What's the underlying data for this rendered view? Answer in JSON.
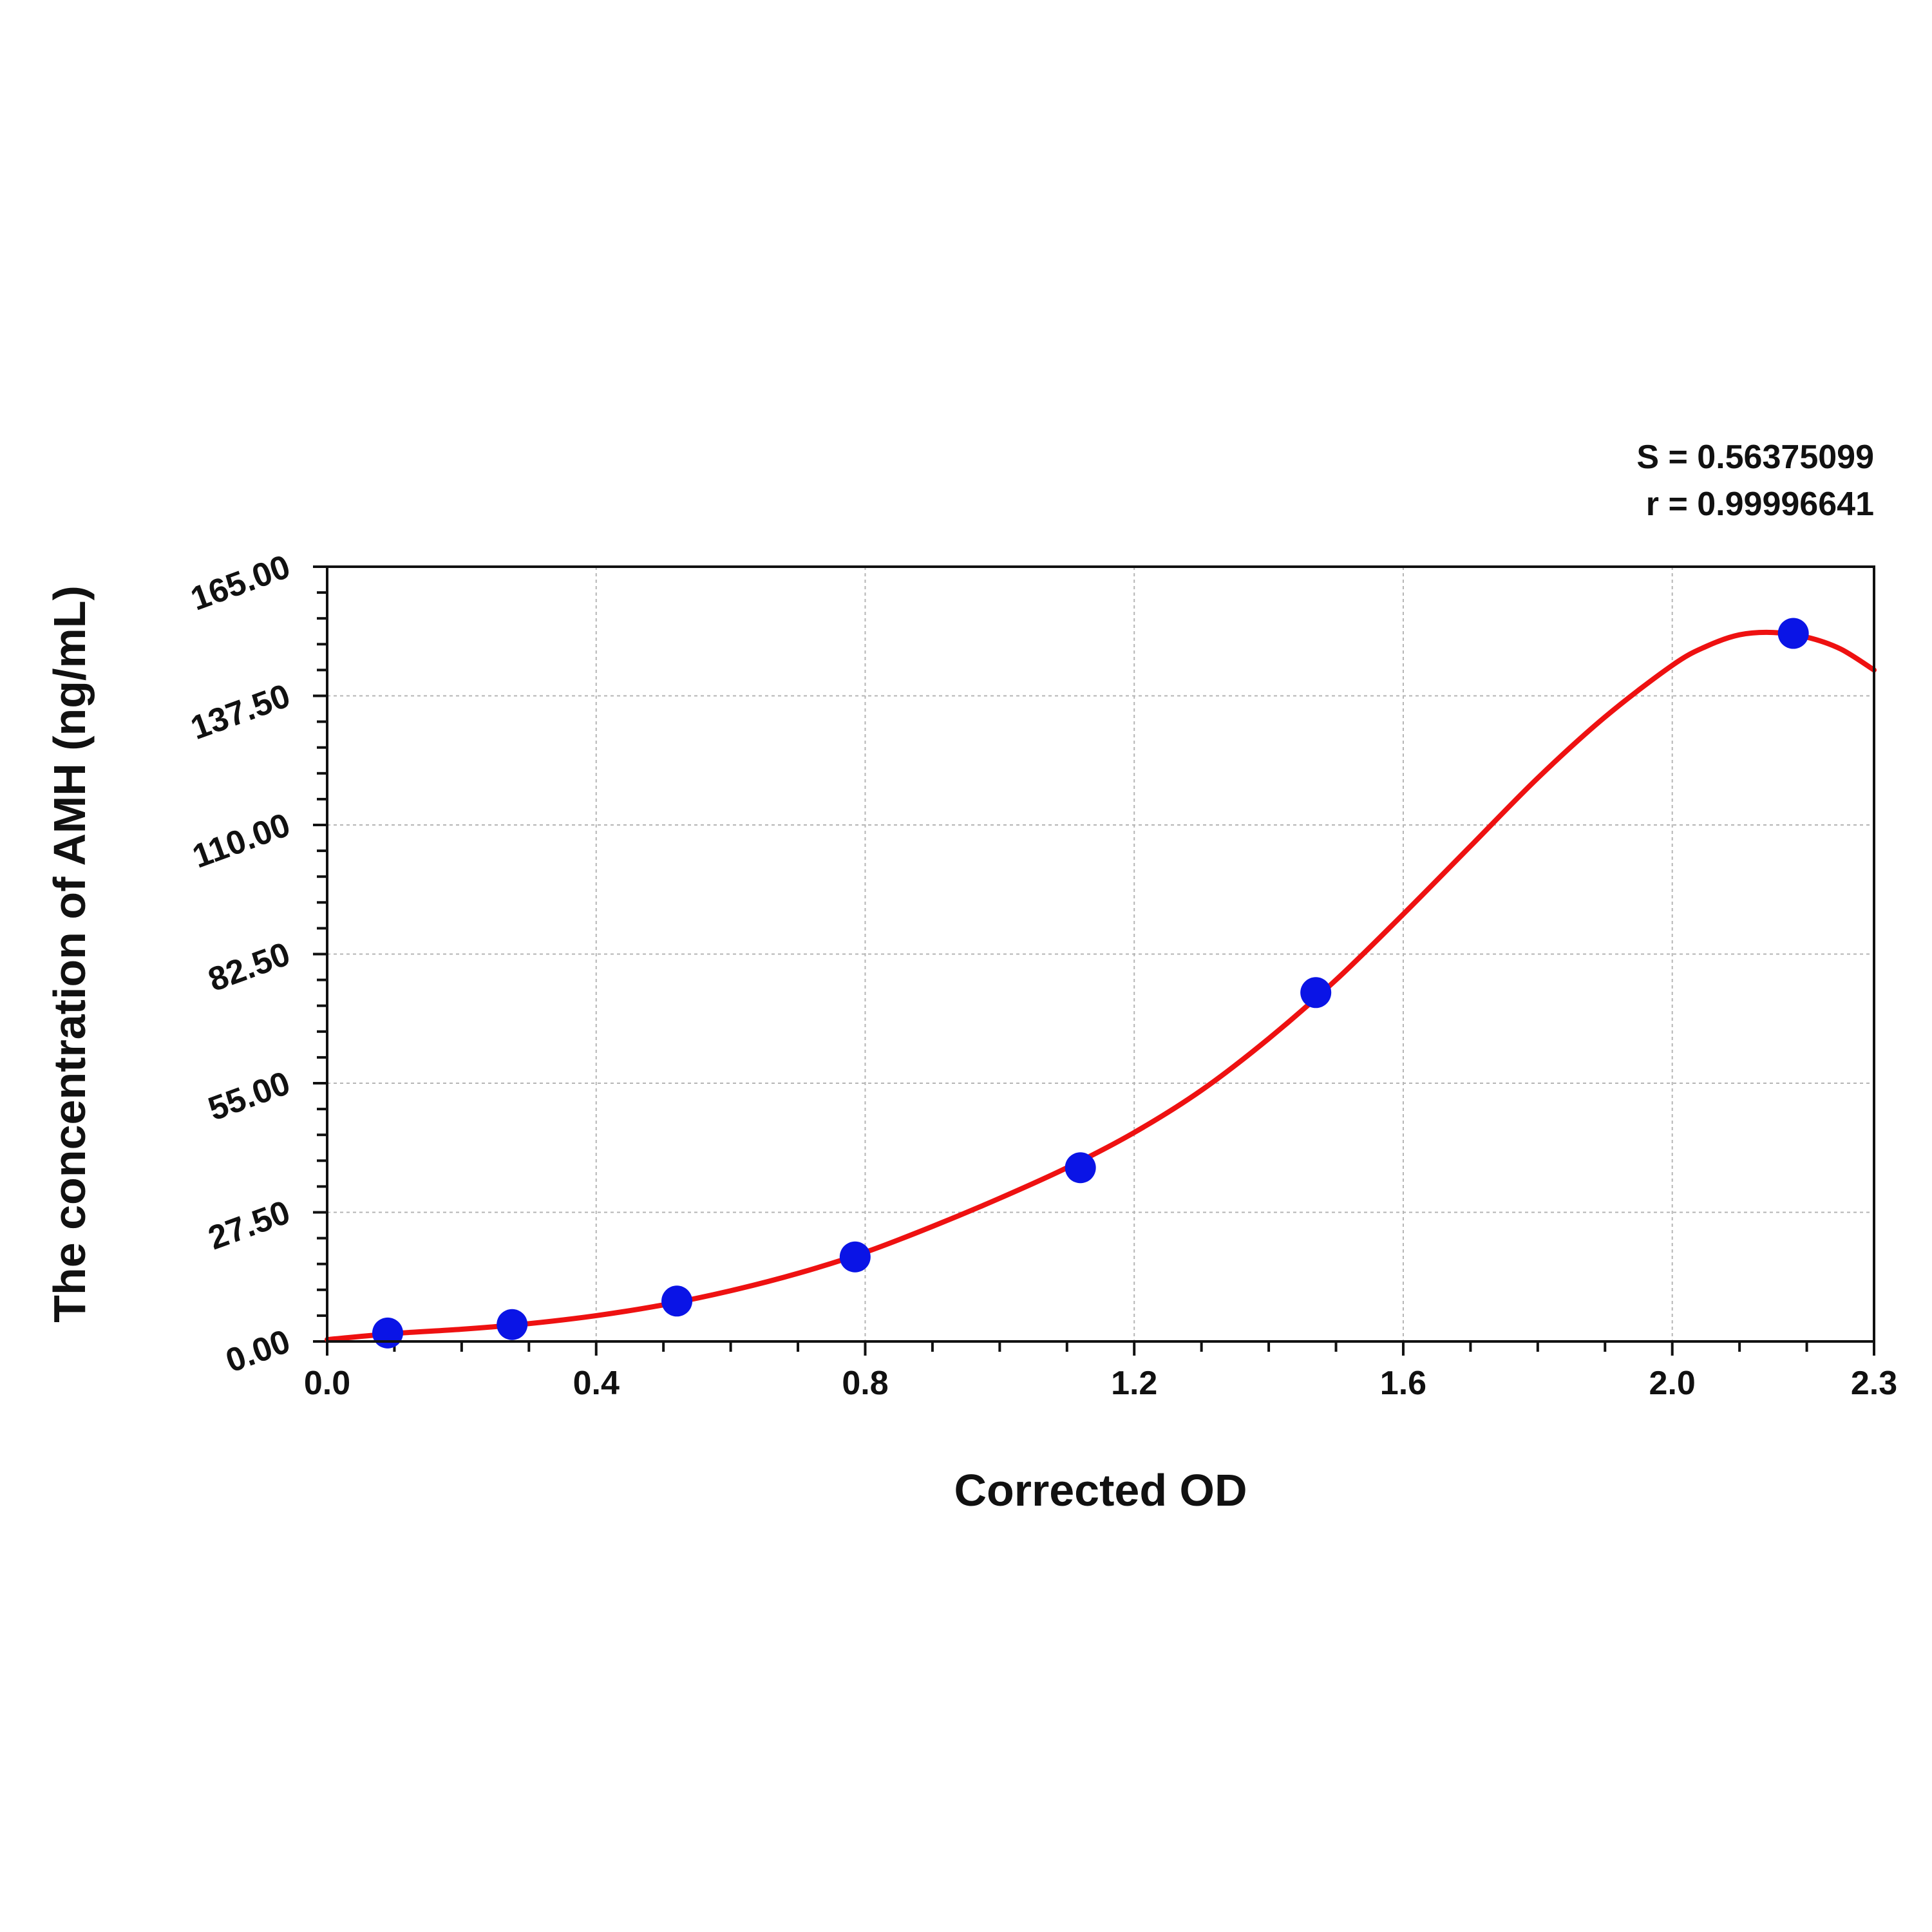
{
  "chart_data": {
    "type": "scatter",
    "title": "",
    "xlabel": "Corrected OD",
    "ylabel": "The concentration of AMH (ng/mL)",
    "xlim": [
      0.0,
      2.3
    ],
    "ylim": [
      0.0,
      165.0
    ],
    "x_ticks": [
      "0.0",
      "0.4",
      "0.8",
      "1.2",
      "1.6",
      "2.0",
      "2.3"
    ],
    "x_tick_values": [
      0.0,
      0.4,
      0.8,
      1.2,
      1.6,
      2.0,
      2.3
    ],
    "y_ticks": [
      "0.00",
      "27.50",
      "55.00",
      "82.50",
      "110.00",
      "137.50",
      "165.00"
    ],
    "y_tick_values": [
      0.0,
      27.5,
      55.0,
      82.5,
      110.0,
      137.5,
      165.0
    ],
    "grid": true,
    "stats": {
      "s": "S = 0.56375099",
      "r": "r = 0.99996641"
    },
    "series": [
      {
        "kind": "points",
        "color": "#0a14e6",
        "x": [
          0.09,
          0.275,
          0.52,
          0.785,
          1.12,
          1.47,
          2.18
        ],
        "y": [
          1.8,
          3.6,
          8.6,
          18.0,
          37.0,
          74.3,
          150.8
        ]
      },
      {
        "kind": "fit-line",
        "color": "#ee1111",
        "x": [
          0.0,
          0.1,
          0.2,
          0.3,
          0.4,
          0.5,
          0.6,
          0.7,
          0.8,
          0.9,
          1.0,
          1.1,
          1.2,
          1.3,
          1.4,
          1.5,
          1.6,
          1.7,
          1.8,
          1.9,
          2.0,
          2.05,
          2.1,
          2.15,
          2.2,
          2.25,
          2.3
        ],
        "y": [
          0.4,
          1.7,
          2.6,
          3.8,
          5.5,
          7.8,
          10.8,
          14.5,
          19.0,
          24.5,
          30.5,
          37.0,
          44.5,
          53.5,
          64.5,
          77.0,
          91.0,
          105.5,
          120.0,
          133.0,
          144.0,
          148.0,
          150.5,
          151.0,
          150.0,
          147.5,
          143.0
        ]
      }
    ]
  }
}
